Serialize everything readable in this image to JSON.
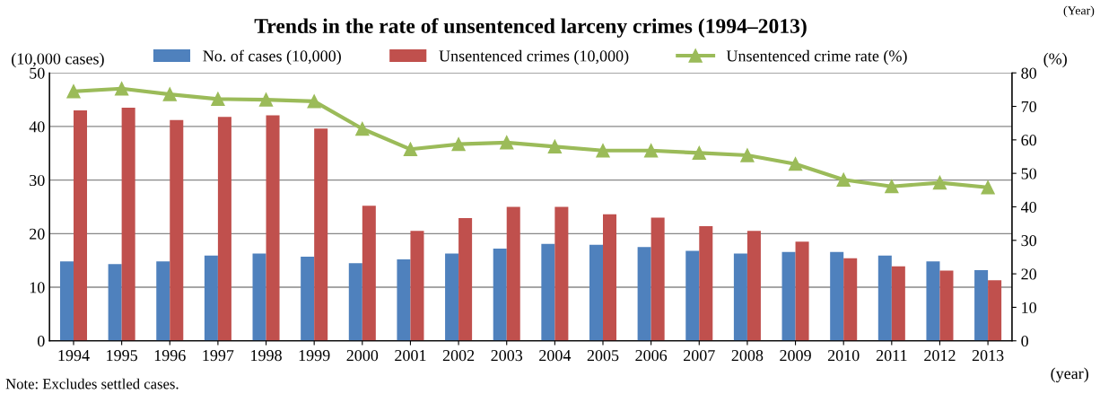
{
  "chart_data": {
    "type": "bar",
    "title": "Trends in the rate of unsentenced larceny crimes (1994–2013)",
    "categories": [
      "1994",
      "1995",
      "1996",
      "1997",
      "1998",
      "1999",
      "2000",
      "2001",
      "2002",
      "2003",
      "2004",
      "2005",
      "2006",
      "2007",
      "2008",
      "2009",
      "2010",
      "2011",
      "2012",
      "2013"
    ],
    "series": [
      {
        "name": "No. of cases (10,000)",
        "color": "#4f81bd",
        "values": [
          14.8,
          14.3,
          14.8,
          15.9,
          16.3,
          15.7,
          14.5,
          15.2,
          16.3,
          17.2,
          18.1,
          17.9,
          17.5,
          16.8,
          16.3,
          16.6,
          16.6,
          15.9,
          14.8,
          13.2
        ]
      },
      {
        "name": "Unsentenced crimes (10,000)",
        "color": "#c0504d",
        "values": [
          43.0,
          43.5,
          41.2,
          41.8,
          42.1,
          39.6,
          25.2,
          20.5,
          22.9,
          25.0,
          25.0,
          23.6,
          23.0,
          21.4,
          20.5,
          18.5,
          15.4,
          13.9,
          13.1,
          11.3
        ]
      },
      {
        "name": "Unsentenced crime rate (%)",
        "color": "#9bbb59",
        "type": "line",
        "axis": "y2",
        "marker": "triangle",
        "values": [
          74.5,
          75.3,
          73.6,
          72.2,
          72.0,
          71.5,
          63.3,
          57.2,
          58.7,
          59.2,
          58.0,
          56.8,
          56.8,
          56.1,
          55.4,
          52.8,
          48.1,
          46.1,
          47.2,
          45.8
        ]
      }
    ],
    "ylabel": "(10,000 cases)",
    "y2label": "(%)",
    "xlabel": "(year)",
    "ylim": [
      0,
      50
    ],
    "yticks": [
      0,
      10,
      20,
      30,
      40,
      50
    ],
    "y2lim": [
      0,
      80
    ],
    "y2ticks": [
      0,
      10,
      20,
      30,
      40,
      50,
      60,
      70,
      80
    ],
    "grid": "y",
    "legend": "top",
    "annotations": [
      "(Year)",
      "Note: Excludes settled cases."
    ]
  }
}
